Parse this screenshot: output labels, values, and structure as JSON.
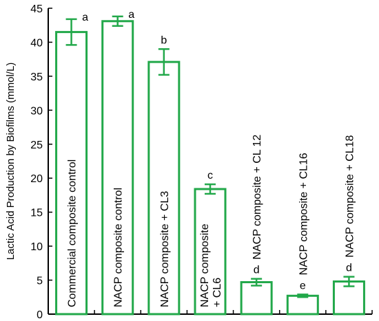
{
  "chart_data": {
    "type": "bar",
    "title": "",
    "xlabel": "",
    "ylabel": "Lactic Acid Production by Biofilms (mmol/L)",
    "ylim": [
      0,
      45
    ],
    "yticks": [
      0,
      5,
      10,
      15,
      20,
      25,
      30,
      35,
      40,
      45
    ],
    "grid": false,
    "bar_color": "#22a84a",
    "categories": [
      [
        "Commercial composite control"
      ],
      [
        "NACP composite control"
      ],
      [
        "NACP composite + CL3"
      ],
      [
        "NACP composite",
        "+ CL6"
      ],
      [
        "NACP composite + CL 12"
      ],
      [
        "NACP composite + CL16"
      ],
      [
        "NACP composite + CL18"
      ]
    ],
    "values": [
      41.5,
      43.1,
      37.1,
      18.4,
      4.7,
      2.7,
      4.8
    ],
    "errors": [
      1.9,
      0.7,
      1.9,
      0.7,
      0.5,
      0.2,
      0.7
    ],
    "significance_letters": [
      "a",
      "a",
      "b",
      "c",
      "d",
      "e",
      "d"
    ],
    "label_placement": [
      "inside",
      "inside",
      "inside",
      "inside",
      "above",
      "above",
      "above"
    ]
  }
}
